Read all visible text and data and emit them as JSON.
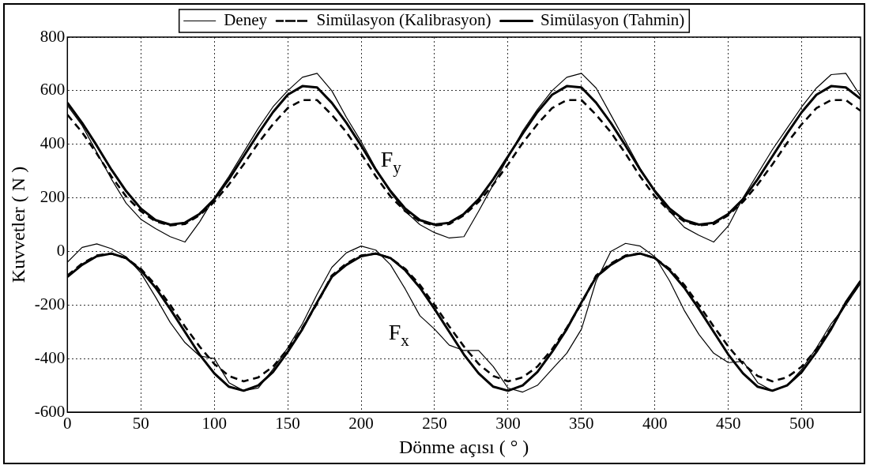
{
  "chart_data": {
    "type": "line",
    "xlabel": "Dönme açısı ( ° )",
    "ylabel": "Kuvvetler ( N )",
    "x": [
      0,
      10,
      20,
      30,
      40,
      50,
      60,
      70,
      80,
      90,
      100,
      110,
      120,
      130,
      140,
      150,
      160,
      170,
      180,
      190,
      200,
      210,
      220,
      230,
      240,
      250,
      260,
      270,
      280,
      290,
      300,
      310,
      320,
      330,
      340,
      350,
      360,
      370,
      380,
      390,
      400,
      410,
      420,
      430,
      440,
      450,
      460,
      470,
      480,
      490,
      500,
      510,
      520,
      530,
      540
    ],
    "xlim": [
      0,
      540
    ],
    "xticks": [
      0,
      50,
      100,
      150,
      200,
      250,
      300,
      350,
      400,
      450,
      500
    ],
    "ylim": [
      -600,
      800
    ],
    "yticks": [
      -600,
      -400,
      -200,
      0,
      200,
      400,
      600,
      800
    ],
    "grid": true,
    "legend": "top",
    "marker": "none",
    "series": [
      {
        "name": "Deney",
        "color": "#000000",
        "line_style": "solid",
        "values": [
          545,
          470,
          370,
          270,
          180,
          120,
          85,
          55,
          35,
          110,
          200,
          280,
          370,
          460,
          540,
          600,
          650,
          665,
          600,
          500,
          410,
          310,
          220,
          150,
          100,
          70,
          50,
          55,
          150,
          250,
          350,
          450,
          530,
          600,
          650,
          665,
          610,
          510,
          410,
          310,
          220,
          150,
          90,
          60,
          35,
          95,
          200,
          290,
          380,
          460,
          540,
          610,
          660,
          665,
          580
        ]
      },
      {
        "name": "Simülasyon (Kalibrasyon)",
        "color": "#000000",
        "line_style": "dashed",
        "values": [
          510,
          445,
          365,
          280,
          205,
          150,
          112,
          97,
          102,
          135,
          185,
          250,
          325,
          405,
          475,
          535,
          565,
          565,
          510,
          445,
          365,
          280,
          205,
          150,
          112,
          97,
          102,
          135,
          185,
          250,
          325,
          405,
          475,
          535,
          565,
          565,
          510,
          445,
          365,
          280,
          205,
          150,
          112,
          97,
          102,
          135,
          185,
          250,
          325,
          405,
          475,
          535,
          565,
          565,
          525
        ]
      },
      {
        "name": "Simülasyon (Tahmin)",
        "color": "#000000",
        "line_style": "solid",
        "values": [
          555,
          480,
          395,
          305,
          225,
          160,
          117,
          100,
          107,
          140,
          195,
          270,
          355,
          440,
          520,
          585,
          617,
          612,
          555,
          480,
          395,
          305,
          225,
          160,
          117,
          100,
          107,
          140,
          195,
          270,
          355,
          440,
          520,
          585,
          617,
          612,
          555,
          480,
          395,
          305,
          225,
          160,
          117,
          100,
          107,
          140,
          195,
          270,
          355,
          440,
          520,
          585,
          617,
          612,
          570
        ]
      },
      {
        "color": "#000000",
        "line_style": "solid",
        "values": [
          -40,
          15,
          28,
          10,
          -20,
          -80,
          -170,
          -265,
          -340,
          -390,
          -400,
          -490,
          -520,
          -510,
          -440,
          -360,
          -270,
          -160,
          -60,
          -5,
          20,
          5,
          -50,
          -140,
          -240,
          -290,
          -350,
          -370,
          -370,
          -430,
          -510,
          -525,
          -500,
          -440,
          -380,
          -290,
          -110,
          0,
          30,
          20,
          -20,
          -110,
          -220,
          -310,
          -380,
          -415,
          -410,
          -490,
          -520,
          -500,
          -440,
          -360,
          -270,
          -200,
          -120
        ]
      },
      {
        "color": "#000000",
        "line_style": "dashed",
        "values": [
          -90,
          -45,
          -15,
          -8,
          -25,
          -65,
          -125,
          -200,
          -280,
          -355,
          -420,
          -465,
          -485,
          -470,
          -430,
          -365,
          -285,
          -195,
          -90,
          -45,
          -15,
          -8,
          -25,
          -65,
          -125,
          -200,
          -280,
          -355,
          -420,
          -465,
          -485,
          -470,
          -430,
          -365,
          -285,
          -195,
          -90,
          -45,
          -15,
          -8,
          -25,
          -65,
          -125,
          -200,
          -280,
          -355,
          -420,
          -465,
          -485,
          -470,
          -430,
          -365,
          -285,
          -195,
          -115
        ]
      },
      {
        "color": "#000000",
        "line_style": "solid",
        "values": [
          -95,
          -50,
          -18,
          -8,
          -25,
          -70,
          -135,
          -215,
          -300,
          -385,
          -455,
          -505,
          -520,
          -500,
          -450,
          -375,
          -290,
          -190,
          -95,
          -50,
          -18,
          -8,
          -25,
          -70,
          -135,
          -215,
          -300,
          -385,
          -455,
          -505,
          -520,
          -500,
          -450,
          -375,
          -290,
          -190,
          -95,
          -50,
          -18,
          -8,
          -25,
          -70,
          -135,
          -215,
          -300,
          -385,
          -455,
          -505,
          -520,
          -500,
          -450,
          -375,
          -290,
          -190,
          -110
        ]
      }
    ],
    "annotations": [
      "F$_{y}$",
      "F$_{x}$"
    ]
  }
}
